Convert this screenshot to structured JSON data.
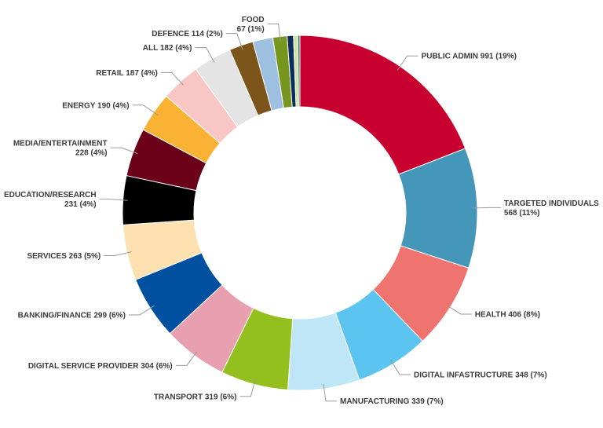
{
  "chart_data": {
    "type": "pie",
    "donut": true,
    "start": "12 o'clock, clockwise",
    "slices": [
      {
        "lines": [
          "PUBLIC ADMIN 991 (19%)"
        ],
        "value": 991,
        "color": "#c8002f"
      },
      {
        "lines": [
          "TARGETED INDIVIDUALS",
          "568 (11%)"
        ],
        "value": 568,
        "color": "#4597ba"
      },
      {
        "lines": [
          "HEALTH 406 (8%)"
        ],
        "value": 406,
        "color": "#ef7470"
      },
      {
        "lines": [
          "DIGITAL INFASTRUCTURE 348 (7%)"
        ],
        "value": 348,
        "color": "#5bc4f0"
      },
      {
        "lines": [
          "MANUFACTURING 339 (7%)"
        ],
        "value": 339,
        "color": "#bfe6f7"
      },
      {
        "lines": [
          "TRANSPORT 319 (6%)"
        ],
        "value": 319,
        "color": "#93c01f"
      },
      {
        "lines": [
          "DIGITAL SERVICE PROVIDER 304 (6%)"
        ],
        "value": 304,
        "color": "#e8a0b1"
      },
      {
        "lines": [
          "BANKING/FINANCE 299 (6%)"
        ],
        "value": 299,
        "color": "#0050a0"
      },
      {
        "lines": [
          "SERVICES 263 (5%)"
        ],
        "value": 263,
        "color": "#fde1b1"
      },
      {
        "lines": [
          "EDUCATION/RESEARCH",
          "231 (4%)"
        ],
        "value": 231,
        "color": "#000000"
      },
      {
        "lines": [
          "MEDIA/ENTERTAINMENT",
          "228 (4%)"
        ],
        "value": 228,
        "color": "#6b0019"
      },
      {
        "lines": [
          "ENERGY 190 (4%)"
        ],
        "value": 190,
        "color": "#f9b233"
      },
      {
        "lines": [
          "RETAIL 187 (4%)"
        ],
        "value": 187,
        "color": "#f8c6c5"
      },
      {
        "lines": [
          "ALL 182 (4%)"
        ],
        "value": 182,
        "color": "#e4e4e4"
      },
      {
        "lines": [
          "DEFENCE 114 (2%)"
        ],
        "value": 114,
        "color": "#7b5519"
      },
      {
        "lines": [],
        "value": 95,
        "color": "#9dbfe0"
      },
      {
        "lines": [
          "FOOD",
          "67 (1%)"
        ],
        "value": 67,
        "color": "#76961e"
      },
      {
        "lines": [],
        "value": 30,
        "color": "#0a2d5e"
      },
      {
        "lines": [],
        "value": 20,
        "color": "#c8e4a0"
      },
      {
        "lines": [],
        "value": 10,
        "color": "#2a7a6a"
      }
    ]
  }
}
